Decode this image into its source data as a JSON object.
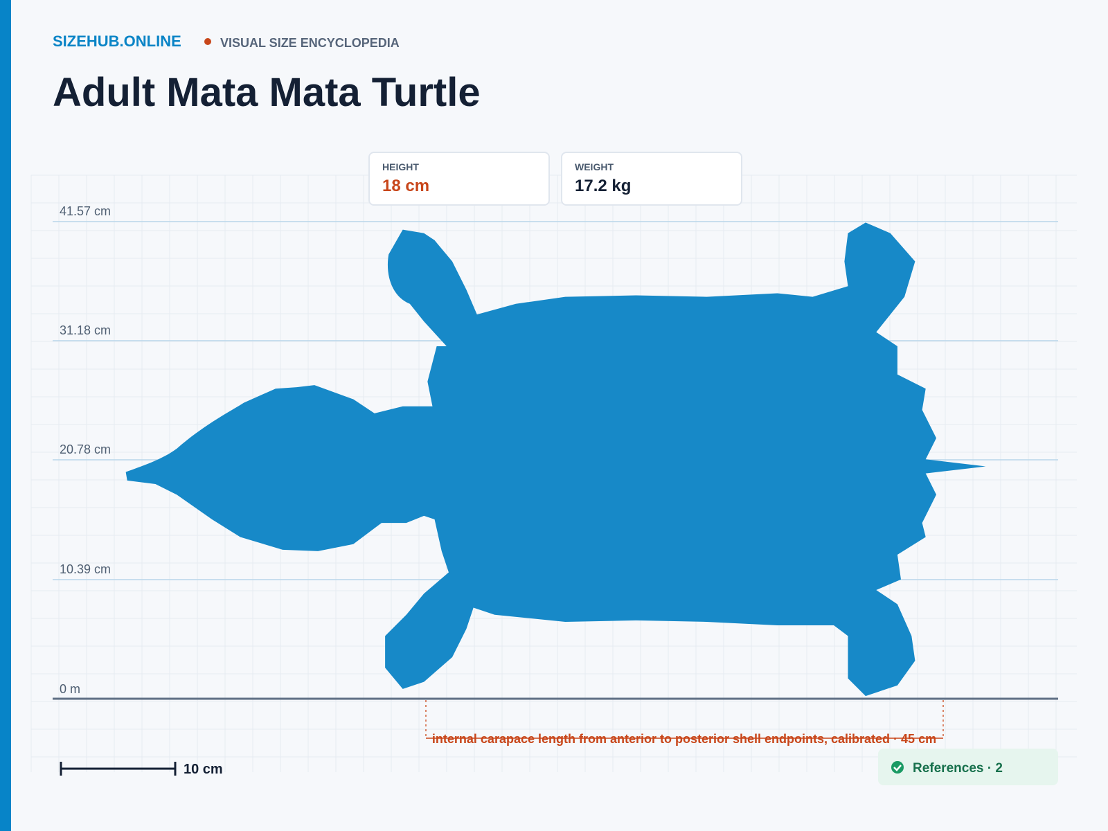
{
  "header": {
    "brand": "SIZEHUB.ONLINE",
    "tagline": "VISUAL SIZE ENCYCLOPEDIA",
    "title": "Adult Mata Mata Turtle"
  },
  "stats": [
    {
      "label": "HEIGHT",
      "value": "18 cm"
    },
    {
      "label": "WEIGHT",
      "value": "17.2 kg"
    }
  ],
  "axis_labels": [
    "41.57 cm",
    "31.18 cm",
    "20.78 cm",
    "10.39 cm",
    "0 m"
  ],
  "annotation": "internal carapace length from anterior to posterior shell endpoints, calibrated · 45 cm",
  "scale_bar": "10 cm",
  "references": "References · 2"
}
